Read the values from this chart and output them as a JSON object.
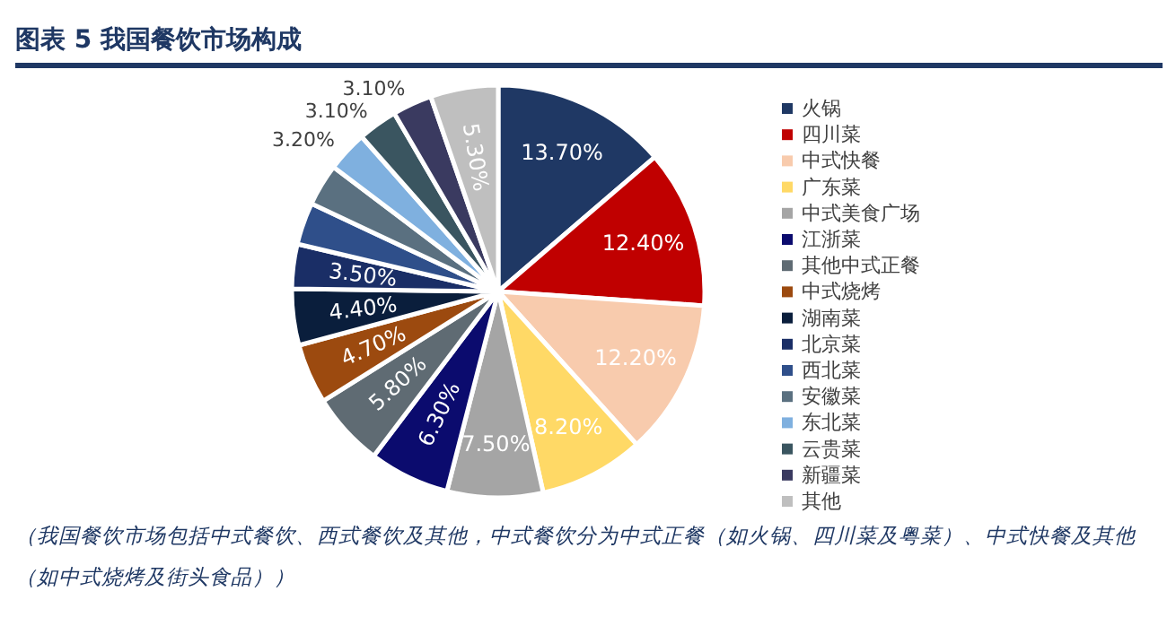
{
  "chart_data": {
    "type": "pie",
    "title": "图表 5   我国餐饮市场构成",
    "categories": [
      "火锅",
      "四川菜",
      "中式快餐",
      "广东菜",
      "中式美食广场",
      "江浙菜",
      "其他中式正餐",
      "中式烧烤",
      "湖南菜",
      "北京菜",
      "西北菜",
      "安徽菜",
      "东北菜",
      "云贵菜",
      "新疆菜",
      "其他"
    ],
    "values": [
      13.7,
      12.4,
      12.2,
      8.2,
      7.5,
      6.3,
      5.8,
      4.7,
      4.4,
      3.5,
      3.3,
      3.3,
      3.2,
      3.1,
      3.1,
      5.3
    ],
    "colors": [
      "#1f3864",
      "#c00000",
      "#f8cbad",
      "#ffd966",
      "#a5a5a5",
      "#0b0b6e",
      "#5f6b73",
      "#9c4a0f",
      "#0a1e3c",
      "#1a2e66",
      "#2f4f8a",
      "#5a7080",
      "#7fb0df",
      "#3a5560",
      "#3a3a60",
      "#bfbfbf"
    ],
    "value_labels": [
      "13.70%",
      "12.40%",
      "12.20%",
      "8.20%",
      "7.50%",
      "6.30%",
      "5.80%",
      "4.70%",
      "4.40%",
      "3.50%",
      null,
      null,
      "3.20%",
      "3.10%",
      "3.10%",
      "5.30%"
    ],
    "legend": "right",
    "annotations": [
      "（我国餐饮市场包括中式餐饮、西式餐饮及其他，中式餐饮分为中式正餐（如火锅、四川菜及粤菜）、中式快餐及其他（如中式烧烤及街头食品））"
    ]
  }
}
